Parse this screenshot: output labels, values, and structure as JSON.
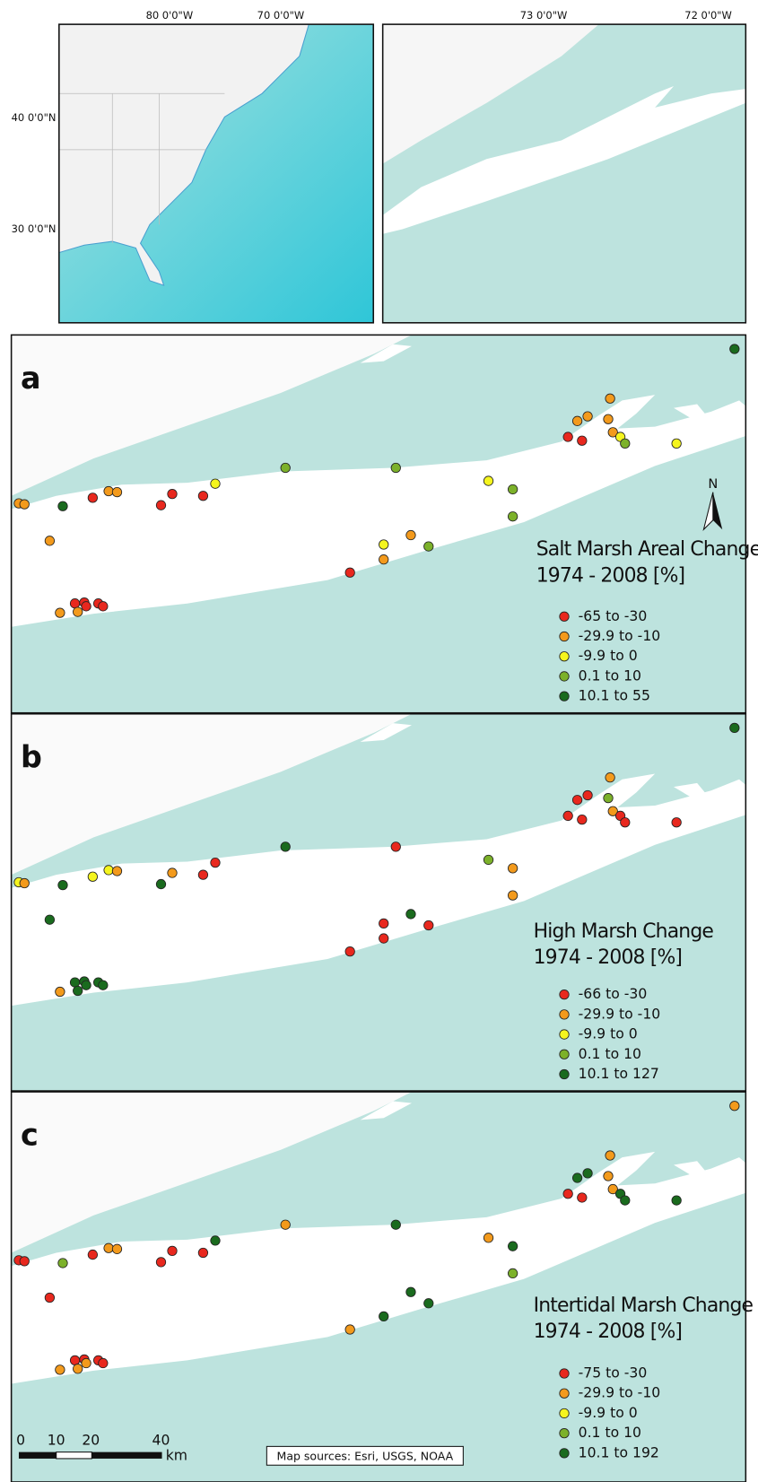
{
  "overview": {
    "lon_labels": [
      "80 0'0\"W",
      "70 0'0\"W"
    ],
    "lat_labels": [
      "40 0'0\"N",
      "30 0'0\"N"
    ]
  },
  "inset": {
    "lon_labels": [
      "73 0'0\"W",
      "72 0'0\"W"
    ]
  },
  "panels": [
    {
      "letter": "a",
      "legend_title": [
        "Salt Marsh Areal Change",
        "1974 - 2008 [%]"
      ],
      "legend": [
        "-65 to -30",
        "-29.9 to -10",
        "-9.9 to 0",
        "0.1 to 10",
        "10.1 to 55"
      ]
    },
    {
      "letter": "b",
      "legend_title": [
        "High Marsh Change",
        "1974 - 2008 [%]"
      ],
      "legend": [
        "-66 to -30",
        "-29.9 to -10",
        "-9.9 to 0",
        "0.1 to 10",
        "10.1 to 127"
      ]
    },
    {
      "letter": "c",
      "legend_title": [
        "Intertidal Marsh Change",
        "1974 - 2008 [%]"
      ],
      "legend": [
        "-75 to -30",
        "-29.9 to -10",
        "-9.9 to 0",
        "0.1 to 10",
        "10.1 to 192"
      ]
    }
  ],
  "north": "N",
  "scale_bar": {
    "ticks": [
      "0",
      "10",
      "20",
      "40"
    ],
    "unit": "km"
  },
  "source": "Map sources: Esri, USGS, NOAA"
}
